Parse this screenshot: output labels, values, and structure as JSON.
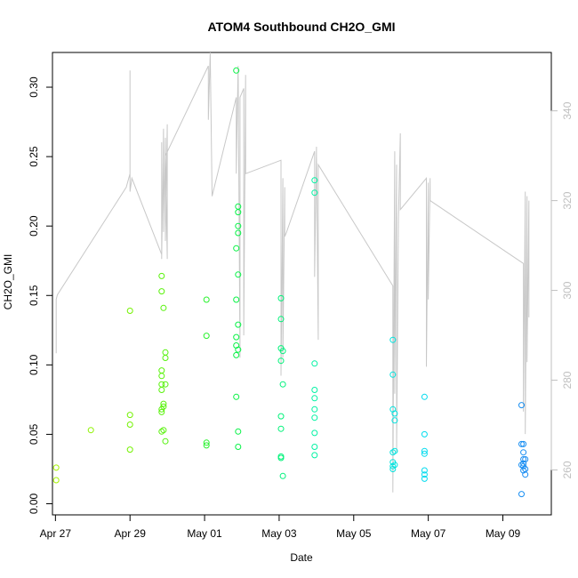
{
  "chart_data": {
    "type": "scatter",
    "title": "ATOM4 Southbound CH2O_GMI",
    "xlabel": "Date",
    "ylabel": "CH2O_GMI",
    "x_ticks": [
      "Apr 27",
      "Apr 29",
      "May 01",
      "May 03",
      "May 05",
      "May 07",
      "May 09"
    ],
    "y_ticks": [
      "0.00",
      "0.05",
      "0.10",
      "0.15",
      "0.20",
      "0.25",
      "0.30"
    ],
    "y2_ticks": [
      "260",
      "280",
      "300",
      "320",
      "340"
    ],
    "xlim": [
      -0.08,
      13.3
    ],
    "ylim": [
      -0.008,
      0.325
    ],
    "y2lim": [
      250,
      353
    ],
    "colors": {
      "scatter_ramp": [
        "#a6f200",
        "#66f200",
        "#00f24a",
        "#00f2c0",
        "#00d9f2",
        "#1a8cf2"
      ],
      "secondary_line": "#c8c8c8"
    },
    "series": [
      {
        "values": [
          [
            0.02,
            0.026
          ],
          [
            0.02,
            0.017
          ],
          [
            0.95,
            0.053
          ],
          [
            2.0,
            0.139
          ],
          [
            2.0,
            0.064
          ],
          [
            2.0,
            0.057
          ],
          [
            2.0,
            0.039
          ],
          [
            2.85,
            0.164
          ],
          [
            2.85,
            0.153
          ],
          [
            2.85,
            0.096
          ],
          [
            2.85,
            0.092
          ],
          [
            2.85,
            0.086
          ],
          [
            2.85,
            0.082
          ],
          [
            2.85,
            0.068
          ],
          [
            2.85,
            0.066
          ],
          [
            2.85,
            0.052
          ],
          [
            2.9,
            0.141
          ],
          [
            2.9,
            0.072
          ],
          [
            2.9,
            0.07
          ],
          [
            2.9,
            0.053
          ],
          [
            2.95,
            0.109
          ],
          [
            2.95,
            0.105
          ],
          [
            2.95,
            0.086
          ],
          [
            2.95,
            0.045
          ],
          [
            4.05,
            0.147
          ],
          [
            4.05,
            0.121
          ],
          [
            4.05,
            0.044
          ],
          [
            4.05,
            0.042
          ],
          [
            4.85,
            0.312
          ],
          [
            4.85,
            0.184
          ],
          [
            4.85,
            0.147
          ],
          [
            4.85,
            0.12
          ],
          [
            4.85,
            0.114
          ],
          [
            4.85,
            0.107
          ],
          [
            4.85,
            0.077
          ],
          [
            4.9,
            0.214
          ],
          [
            4.9,
            0.21
          ],
          [
            4.9,
            0.2
          ],
          [
            4.9,
            0.195
          ],
          [
            4.9,
            0.165
          ],
          [
            4.9,
            0.129
          ],
          [
            4.9,
            0.111
          ],
          [
            4.9,
            0.052
          ],
          [
            4.9,
            0.041
          ],
          [
            6.05,
            0.148
          ],
          [
            6.05,
            0.133
          ],
          [
            6.05,
            0.112
          ],
          [
            6.05,
            0.103
          ],
          [
            6.05,
            0.063
          ],
          [
            6.05,
            0.054
          ],
          [
            6.05,
            0.034
          ],
          [
            6.05,
            0.033
          ],
          [
            6.1,
            0.11
          ],
          [
            6.1,
            0.086
          ],
          [
            6.1,
            0.02
          ],
          [
            6.95,
            0.233
          ],
          [
            6.95,
            0.224
          ],
          [
            6.95,
            0.101
          ],
          [
            6.95,
            0.082
          ],
          [
            6.95,
            0.076
          ],
          [
            6.95,
            0.068
          ],
          [
            6.95,
            0.062
          ],
          [
            6.95,
            0.051
          ],
          [
            6.95,
            0.041
          ],
          [
            6.95,
            0.035
          ],
          [
            9.05,
            0.118
          ],
          [
            9.05,
            0.093
          ],
          [
            9.05,
            0.068
          ],
          [
            9.05,
            0.037
          ],
          [
            9.05,
            0.03
          ],
          [
            9.05,
            0.027
          ],
          [
            9.05,
            0.025
          ],
          [
            9.1,
            0.065
          ],
          [
            9.1,
            0.06
          ],
          [
            9.1,
            0.038
          ],
          [
            9.1,
            0.028
          ],
          [
            9.9,
            0.077
          ],
          [
            9.9,
            0.05
          ],
          [
            9.9,
            0.038
          ],
          [
            9.9,
            0.036
          ],
          [
            9.9,
            0.024
          ],
          [
            9.9,
            0.021
          ],
          [
            9.9,
            0.018
          ],
          [
            12.5,
            0.071
          ],
          [
            12.5,
            0.043
          ],
          [
            12.55,
            0.043
          ],
          [
            12.55,
            0.037
          ],
          [
            12.55,
            0.032
          ],
          [
            12.55,
            0.029
          ],
          [
            12.55,
            0.027
          ],
          [
            12.55,
            0.024
          ],
          [
            12.6,
            0.032
          ],
          [
            12.6,
            0.025
          ],
          [
            12.6,
            0.021
          ],
          [
            12.5,
            0.028
          ],
          [
            12.5,
            0.007
          ]
        ]
      },
      {
        "values": [
          [
            0.02,
            286
          ],
          [
            0.02,
            298
          ],
          [
            0.05,
            299
          ],
          [
            1.9,
            323
          ],
          [
            2.0,
            326
          ],
          [
            2.0,
            349
          ],
          [
            2.0,
            322
          ],
          [
            2.05,
            325
          ],
          [
            2.85,
            308
          ],
          [
            2.85,
            333
          ],
          [
            2.85,
            307
          ],
          [
            2.9,
            336
          ],
          [
            2.9,
            313
          ],
          [
            2.95,
            334
          ],
          [
            2.95,
            311
          ],
          [
            3.0,
            337
          ],
          [
            3.0,
            307
          ],
          [
            2.95,
            330
          ],
          [
            4.1,
            350
          ],
          [
            4.1,
            338
          ],
          [
            4.15,
            353
          ],
          [
            4.2,
            321
          ],
          [
            4.85,
            343
          ],
          [
            4.85,
            326
          ],
          [
            4.9,
            350
          ],
          [
            4.95,
            285
          ],
          [
            4.95,
            343
          ],
          [
            5.05,
            345
          ],
          [
            5.05,
            290
          ],
          [
            5.1,
            348
          ],
          [
            5.1,
            326
          ],
          [
            6.05,
            329
          ],
          [
            6.05,
            281
          ],
          [
            6.1,
            325
          ],
          [
            6.1,
            285
          ],
          [
            6.15,
            323
          ],
          [
            6.15,
            312
          ],
          [
            6.2,
            313
          ],
          [
            6.95,
            331
          ],
          [
            6.95,
            303
          ],
          [
            7.0,
            332
          ],
          [
            7.0,
            330
          ],
          [
            7.05,
            289
          ],
          [
            7.05,
            328
          ],
          [
            9.05,
            301
          ],
          [
            9.05,
            255
          ],
          [
            9.1,
            331
          ],
          [
            9.1,
            277
          ],
          [
            9.15,
            328
          ],
          [
            9.15,
            264
          ],
          [
            9.2,
            316
          ],
          [
            9.25,
            335
          ],
          [
            9.25,
            318
          ],
          [
            9.95,
            325
          ],
          [
            9.95,
            283
          ],
          [
            10.0,
            324
          ],
          [
            10.0,
            298
          ],
          [
            10.05,
            325
          ],
          [
            10.05,
            320
          ],
          [
            12.55,
            306
          ],
          [
            12.55,
            273
          ],
          [
            12.6,
            322
          ],
          [
            12.6,
            268
          ],
          [
            12.65,
            321
          ],
          [
            12.65,
            284
          ],
          [
            12.7,
            320
          ],
          [
            12.7,
            294
          ]
        ]
      }
    ],
    "grid": false,
    "legend": "none"
  }
}
